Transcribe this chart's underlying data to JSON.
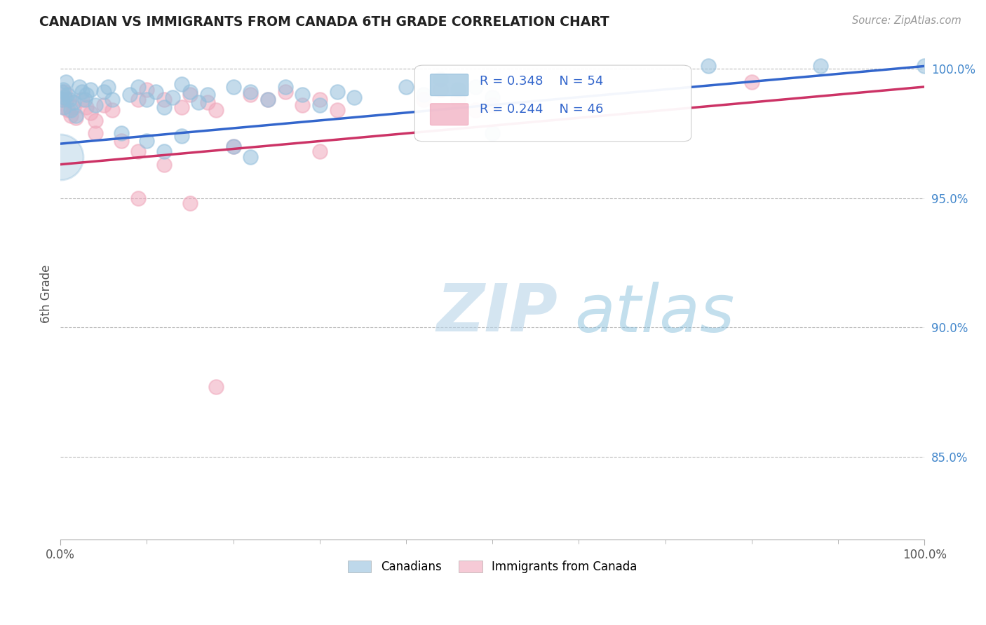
{
  "title": "CANADIAN VS IMMIGRANTS FROM CANADA 6TH GRADE CORRELATION CHART",
  "source_text": "Source: ZipAtlas.com",
  "ylabel": "6th Grade",
  "x_min": 0.0,
  "x_max": 1.0,
  "y_min": 0.818,
  "y_max": 1.008,
  "x_tick_labels": [
    "0.0%",
    "100.0%"
  ],
  "x_ticks": [
    0.0,
    1.0
  ],
  "y_tick_labels": [
    "85.0%",
    "90.0%",
    "95.0%",
    "100.0%"
  ],
  "y_ticks": [
    0.85,
    0.9,
    0.95,
    1.0
  ],
  "grid_color": "#bbbbbb",
  "background_color": "#ffffff",
  "canadian_color": "#94bfdc",
  "immigrant_color": "#f0a8bc",
  "canadian_line_color": "#3366cc",
  "immigrant_line_color": "#cc3366",
  "R_canadian": 0.348,
  "N_canadian": 54,
  "R_immigrant": 0.244,
  "N_immigrant": 46,
  "legend_text_color": "#3366cc",
  "watermark_zip": "ZIP",
  "watermark_atlas": "atlas",
  "canadians_label": "Canadians",
  "immigrants_label": "Immigrants from Canada",
  "can_line_start_y": 0.971,
  "can_line_end_y": 1.001,
  "imm_line_start_y": 0.963,
  "imm_line_end_y": 0.993
}
